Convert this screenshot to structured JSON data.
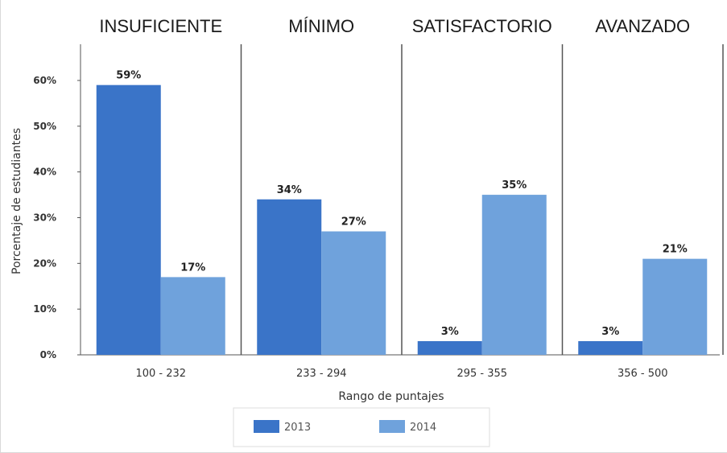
{
  "chart_data": {
    "type": "bar",
    "panel_titles": [
      "INSUFICIENTE",
      "MÍNIMO",
      "SATISFACTORIO",
      "AVANZADO"
    ],
    "categories": [
      "100 - 232",
      "233 - 294",
      "295 - 355",
      "356 - 500"
    ],
    "series": [
      {
        "name": "2013",
        "values": [
          59,
          34,
          3,
          3
        ],
        "color": "#3a74c8"
      },
      {
        "name": "2014",
        "values": [
          17,
          27,
          35,
          21
        ],
        "color": "#6fa2dc"
      }
    ],
    "data_labels": [
      [
        "59%",
        "34%",
        "3%",
        "3%"
      ],
      [
        "17%",
        "27%",
        "35%",
        "21%"
      ]
    ],
    "xlabel": "Rango de puntajes",
    "ylabel": "Porcentaje de estudiantes",
    "yticks": [
      "0%",
      "10%",
      "20%",
      "30%",
      "40%",
      "50%",
      "60%"
    ],
    "ylim": [
      0,
      60
    ],
    "grid": false,
    "legend_position": "bottom"
  }
}
